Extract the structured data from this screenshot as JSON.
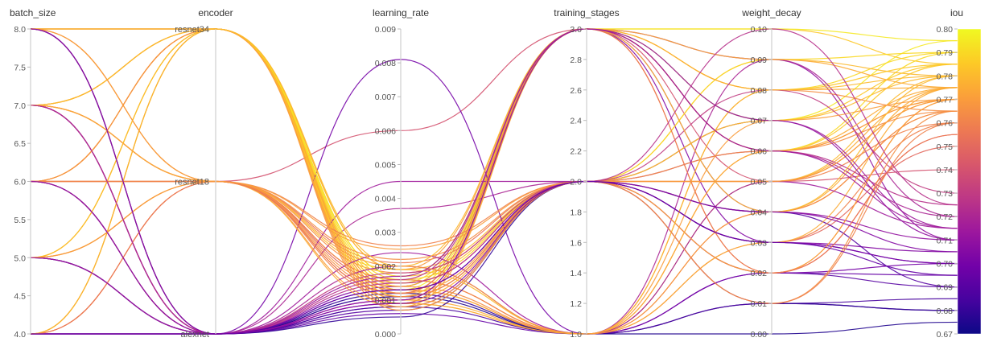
{
  "chart_data": {
    "type": "parallel_coordinates",
    "title": "",
    "color_by": "iou",
    "colorscale": [
      "#0d0887",
      "#46039f",
      "#7201a8",
      "#9c179e",
      "#bd3786",
      "#d8576b",
      "#ed7953",
      "#fb9f3a",
      "#fdca26",
      "#f0f921"
    ],
    "axes": [
      {
        "name": "batch_size",
        "type": "numeric",
        "range": [
          4.0,
          8.0
        ],
        "ticks": [
          "4.0",
          "4.5",
          "5.0",
          "5.5",
          "6.0",
          "6.5",
          "7.0",
          "7.5",
          "8.0"
        ],
        "tick_values": [
          4.0,
          4.5,
          5.0,
          5.5,
          6.0,
          6.5,
          7.0,
          7.5,
          8.0
        ]
      },
      {
        "name": "encoder",
        "type": "categorical",
        "categories": [
          "alexnet",
          "resnet18",
          "resnet34"
        ]
      },
      {
        "name": "learning_rate",
        "type": "numeric",
        "range": [
          0.0,
          0.009
        ],
        "ticks": [
          "0.000",
          "0.001",
          "0.002",
          "0.003",
          "0.004",
          "0.005",
          "0.006",
          "0.007",
          "0.008",
          "0.009"
        ],
        "tick_values": [
          0,
          0.001,
          0.002,
          0.003,
          0.004,
          0.005,
          0.006,
          0.007,
          0.008,
          0.009
        ]
      },
      {
        "name": "training_stages",
        "type": "numeric",
        "range": [
          1.0,
          3.0
        ],
        "ticks": [
          "1.0",
          "1.2",
          "1.4",
          "1.6",
          "1.8",
          "2.0",
          "2.2",
          "2.4",
          "2.6",
          "2.8",
          "3.0"
        ],
        "tick_values": [
          1.0,
          1.2,
          1.4,
          1.6,
          1.8,
          2.0,
          2.2,
          2.4,
          2.6,
          2.8,
          3.0
        ]
      },
      {
        "name": "weight_decay",
        "type": "numeric",
        "range": [
          0.0,
          0.1
        ],
        "ticks": [
          "0.00",
          "0.01",
          "0.02",
          "0.03",
          "0.04",
          "0.05",
          "0.06",
          "0.07",
          "0.08",
          "0.09",
          "0.10"
        ],
        "tick_values": [
          0,
          0.01,
          0.02,
          0.03,
          0.04,
          0.05,
          0.06,
          0.07,
          0.08,
          0.09,
          0.1
        ]
      },
      {
        "name": "iou",
        "type": "numeric",
        "range": [
          0.67,
          0.8
        ],
        "ticks": [
          "0.67",
          "0.68",
          "0.69",
          "0.70",
          "0.71",
          "0.72",
          "0.73",
          "0.74",
          "0.75",
          "0.76",
          "0.77",
          "0.78",
          "0.79",
          "0.80"
        ],
        "tick_values": [
          0.67,
          0.68,
          0.69,
          0.7,
          0.71,
          0.72,
          0.73,
          0.74,
          0.75,
          0.76,
          0.77,
          0.78,
          0.79,
          0.8
        ]
      }
    ],
    "runs": [
      [
        8,
        "resnet34",
        0.0013,
        3,
        0.07,
        0.795
      ],
      [
        8,
        "resnet34",
        0.0011,
        3,
        0.06,
        0.785
      ],
      [
        8,
        "resnet34",
        0.0009,
        1,
        0.05,
        0.78
      ],
      [
        8,
        "resnet18",
        0.0015,
        2,
        0.03,
        0.75
      ],
      [
        8,
        "alexnet",
        0.0008,
        2,
        0.02,
        0.69
      ],
      [
        8,
        "alexnet",
        0.0012,
        1,
        0.01,
        0.68
      ],
      [
        7,
        "resnet34",
        0.0014,
        3,
        0.08,
        0.79
      ],
      [
        7,
        "resnet34",
        0.001,
        2,
        0.05,
        0.775
      ],
      [
        7,
        "resnet18",
        0.0018,
        2,
        0.04,
        0.765
      ],
      [
        7,
        "resnet18",
        0.0016,
        1,
        0.06,
        0.77
      ],
      [
        7,
        "alexnet",
        0.0011,
        2,
        0.03,
        0.7
      ],
      [
        7,
        "alexnet",
        0.0006,
        1,
        0.02,
        0.695
      ],
      [
        7,
        "alexnet",
        0.0009,
        3,
        0.09,
        0.71
      ],
      [
        6,
        "resnet34",
        0.0012,
        3,
        0.1,
        0.785
      ],
      [
        6,
        "resnet34",
        0.0017,
        2,
        0.07,
        0.78
      ],
      [
        6,
        "resnet34",
        0.001,
        1,
        0.04,
        0.775
      ],
      [
        6,
        "resnet18",
        0.006,
        3,
        0.05,
        0.74
      ],
      [
        6,
        "resnet18",
        0.0021,
        2,
        0.02,
        0.755
      ],
      [
        6,
        "resnet18",
        0.0013,
        1,
        0.08,
        0.765
      ],
      [
        6,
        "alexnet",
        0.0037,
        2,
        0.06,
        0.72
      ],
      [
        6,
        "alexnet",
        0.0014,
        3,
        0.03,
        0.705
      ],
      [
        6,
        "alexnet",
        0.0008,
        1,
        0.01,
        0.685
      ],
      [
        5,
        "resnet34",
        0.0015,
        3,
        0.06,
        0.79
      ],
      [
        5,
        "resnet18",
        0.0019,
        2,
        0.09,
        0.78
      ],
      [
        5,
        "alexnet",
        0.0007,
        2,
        0.04,
        0.69
      ],
      [
        5,
        "alexnet",
        0.0011,
        1,
        0.0,
        0.675
      ],
      [
        4,
        "resnet34",
        0.0014,
        3,
        0.08,
        0.785
      ],
      [
        4,
        "resnet34",
        0.0012,
        2,
        0.05,
        0.77
      ],
      [
        4,
        "resnet18",
        0.0016,
        1,
        0.03,
        0.76
      ],
      [
        4,
        "alexnet",
        0.0081,
        1,
        0.02,
        0.7
      ],
      [
        4,
        "alexnet",
        0.0045,
        2,
        0.07,
        0.715
      ],
      [
        4,
        "alexnet",
        0.001,
        3,
        0.04,
        0.71
      ],
      [
        4,
        "alexnet",
        0.0005,
        2,
        0.01,
        0.68
      ],
      [
        8,
        "resnet34",
        0.0016,
        2,
        0.09,
        0.79
      ],
      [
        7,
        "resnet34",
        0.0013,
        1,
        0.03,
        0.775
      ],
      [
        6,
        "resnet34",
        0.0019,
        3,
        0.02,
        0.77
      ],
      [
        5,
        "resnet34",
        0.0011,
        2,
        0.07,
        0.785
      ],
      [
        4,
        "resnet34",
        0.0017,
        3,
        0.1,
        0.795
      ],
      [
        6,
        "resnet18",
        0.0009,
        3,
        0.06,
        0.77
      ],
      [
        7,
        "resnet18",
        0.0026,
        2,
        0.05,
        0.76
      ],
      [
        8,
        "resnet18",
        0.0012,
        3,
        0.08,
        0.775
      ],
      [
        5,
        "resnet18",
        0.0014,
        1,
        0.04,
        0.765
      ],
      [
        4,
        "resnet18",
        0.0022,
        2,
        0.06,
        0.765
      ],
      [
        6,
        "alexnet",
        0.0018,
        2,
        0.08,
        0.73
      ],
      [
        7,
        "alexnet",
        0.0024,
        1,
        0.05,
        0.715
      ],
      [
        8,
        "alexnet",
        0.0016,
        3,
        0.06,
        0.725
      ],
      [
        5,
        "alexnet",
        0.0013,
        2,
        0.03,
        0.7
      ],
      [
        4,
        "alexnet",
        0.002,
        1,
        0.09,
        0.72
      ],
      [
        6,
        "resnet34",
        0.0008,
        2,
        0.01,
        0.765
      ],
      [
        7,
        "resnet34",
        0.002,
        3,
        0.04,
        0.78
      ],
      [
        8,
        "resnet34",
        0.0007,
        2,
        0.02,
        0.77
      ],
      [
        4,
        "resnet34",
        0.0009,
        1,
        0.06,
        0.775
      ],
      [
        5,
        "resnet34",
        0.0019,
        1,
        0.08,
        0.78
      ],
      [
        6,
        "resnet18",
        0.0011,
        2,
        0.01,
        0.76
      ],
      [
        7,
        "resnet18",
        0.0008,
        3,
        0.09,
        0.775
      ],
      [
        8,
        "resnet18",
        0.002,
        1,
        0.07,
        0.77
      ],
      [
        4,
        "resnet18",
        0.0012,
        3,
        0.02,
        0.755
      ],
      [
        5,
        "resnet18",
        0.0025,
        2,
        0.05,
        0.77
      ],
      [
        6,
        "alexnet",
        0.001,
        3,
        0.07,
        0.71
      ],
      [
        7,
        "alexnet",
        0.0015,
        2,
        0.1,
        0.725
      ],
      [
        8,
        "alexnet",
        0.0009,
        2,
        0.04,
        0.705
      ],
      [
        5,
        "alexnet",
        0.0017,
        3,
        0.06,
        0.715
      ],
      [
        4,
        "alexnet",
        0.0013,
        2,
        0.03,
        0.695
      ]
    ]
  }
}
